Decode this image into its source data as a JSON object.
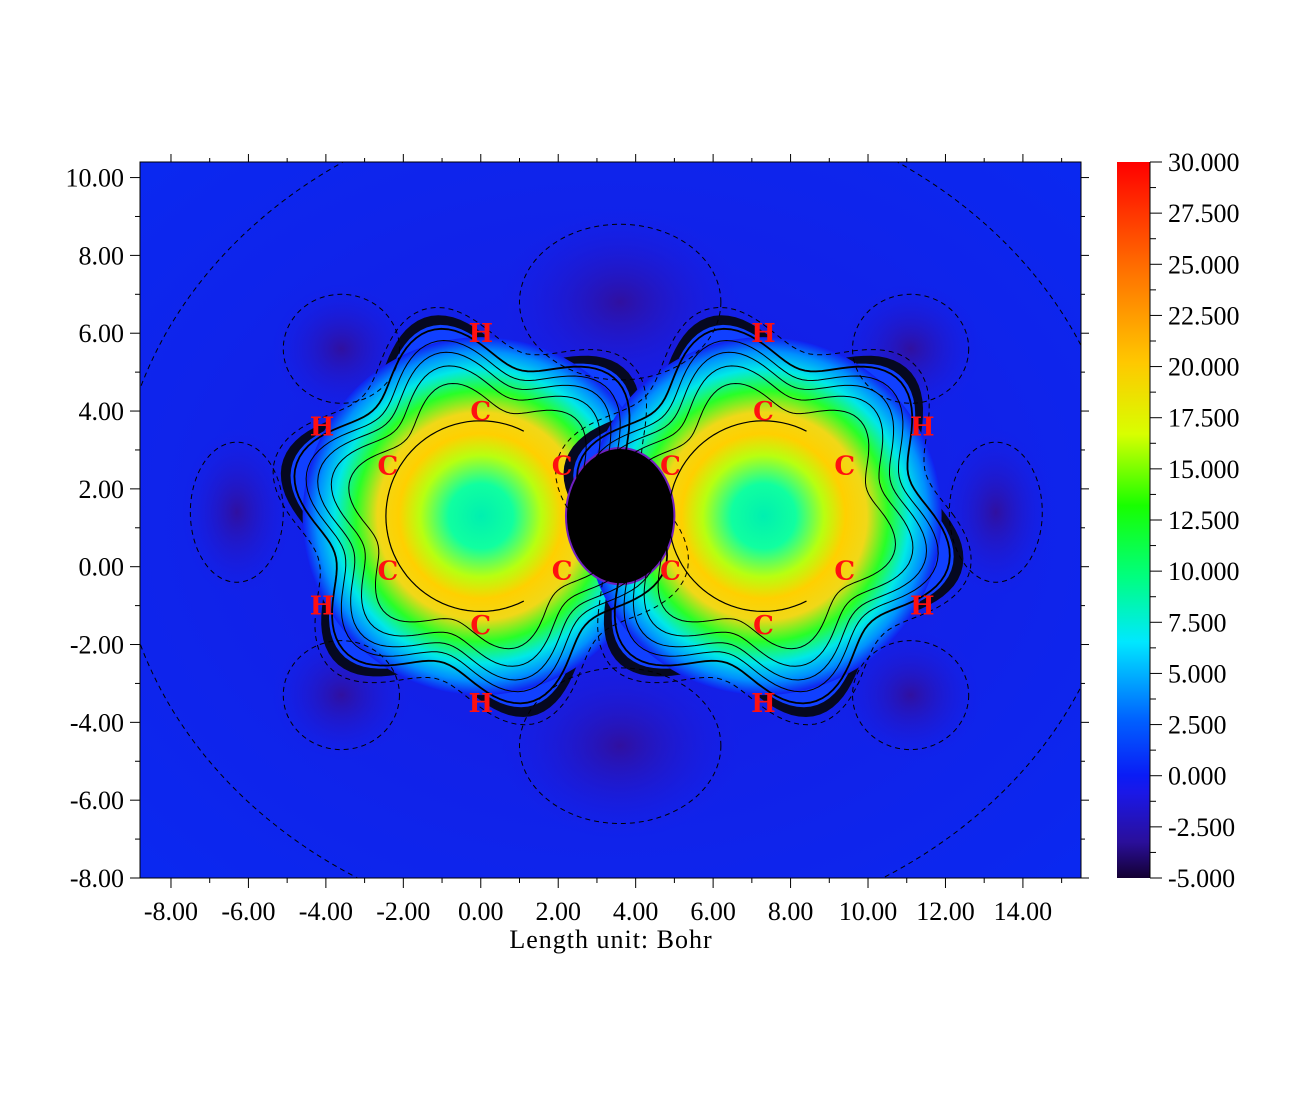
{
  "chart_data": {
    "type": "heatmap",
    "title": "",
    "xlabel": "Length unit: Bohr",
    "ylabel": "",
    "xlim": [
      -8.8,
      15.5
    ],
    "ylim": [
      -8.0,
      10.4
    ],
    "x_ticks": [
      "-8.00",
      "-6.00",
      "-4.00",
      "-2.00",
      "0.00",
      "2.00",
      "4.00",
      "6.00",
      "8.00",
      "10.00",
      "12.00",
      "14.00"
    ],
    "y_ticks": [
      "-8.00",
      "-6.00",
      "-4.00",
      "-2.00",
      "0.00",
      "2.00",
      "4.00",
      "6.00",
      "8.00",
      "10.00"
    ],
    "colorbar": {
      "min": -5.0,
      "max": 30.0,
      "ticks": [
        "-5.000",
        "-2.500",
        "0.000",
        "2.500",
        "5.000",
        "7.500",
        "10.000",
        "12.500",
        "15.000",
        "17.500",
        "20.000",
        "22.500",
        "25.000",
        "27.500",
        "30.000"
      ]
    },
    "atoms": [
      {
        "label": "H",
        "x": 0.0,
        "y": 6.0
      },
      {
        "label": "C",
        "x": 0.0,
        "y": 4.0
      },
      {
        "label": "H",
        "x": -4.1,
        "y": 3.6
      },
      {
        "label": "C",
        "x": -2.4,
        "y": 2.6
      },
      {
        "label": "C",
        "x": 2.1,
        "y": 2.6
      },
      {
        "label": "C",
        "x": -2.4,
        "y": -0.1
      },
      {
        "label": "C",
        "x": 2.1,
        "y": -0.1
      },
      {
        "label": "H",
        "x": -4.1,
        "y": -1.0
      },
      {
        "label": "C",
        "x": 0.0,
        "y": -1.5
      },
      {
        "label": "H",
        "x": 0.0,
        "y": -3.5
      },
      {
        "label": "H",
        "x": 7.3,
        "y": 6.0
      },
      {
        "label": "C",
        "x": 7.3,
        "y": 4.0
      },
      {
        "label": "H",
        "x": 11.4,
        "y": 3.6
      },
      {
        "label": "C",
        "x": 4.9,
        "y": 2.6
      },
      {
        "label": "C",
        "x": 9.4,
        "y": 2.6
      },
      {
        "label": "C",
        "x": 4.9,
        "y": -0.1
      },
      {
        "label": "C",
        "x": 9.4,
        "y": -0.1
      },
      {
        "label": "H",
        "x": 11.4,
        "y": -1.0
      },
      {
        "label": "C",
        "x": 7.3,
        "y": -1.5
      },
      {
        "label": "H",
        "x": 7.3,
        "y": -3.5
      }
    ],
    "central_void": {
      "center_x": 3.6,
      "center_y": 1.3,
      "radius_x": 1.4,
      "radius_y": 1.75
    }
  }
}
